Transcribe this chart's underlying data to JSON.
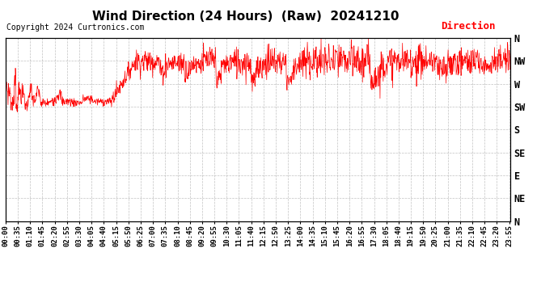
{
  "title": "Wind Direction (24 Hours)  (Raw)  20241210",
  "copyright": "Copyright 2024 Curtronics.com",
  "legend_label": "Direction",
  "legend_color": "#ff0000",
  "line_color": "#ff0000",
  "background_color": "#ffffff",
  "grid_color": "#999999",
  "y_labels": [
    "N",
    "NW",
    "W",
    "SW",
    "S",
    "SE",
    "E",
    "NE",
    "N"
  ],
  "y_values": [
    360,
    315,
    270,
    225,
    180,
    135,
    90,
    45,
    0
  ],
  "y_min": 0,
  "y_max": 360,
  "x_min": 0,
  "x_max": 1439,
  "title_fontsize": 11,
  "copyright_fontsize": 7,
  "legend_fontsize": 9,
  "axis_label_fontsize": 6.5
}
